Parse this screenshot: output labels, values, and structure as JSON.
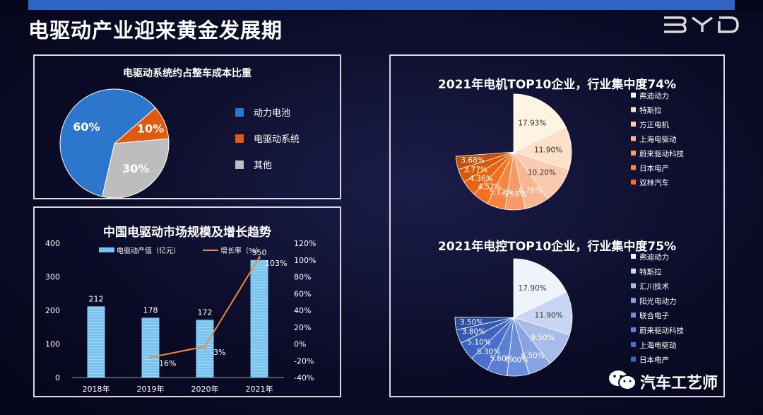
{
  "header": {
    "title": "电驱动产业迎来黄金发展期",
    "brand_logo_text": "BYD"
  },
  "watermark": {
    "text": "汽车工艺师",
    "icon": "wechat-icon"
  },
  "colors": {
    "pie_cost": [
      "#2c77cc",
      "#e05a10",
      "#bdbdbd"
    ],
    "motor": [
      "#fdf5e2",
      "#fde0c8",
      "#fbcbb0",
      "#f9b590",
      "#f79a68",
      "#f58540",
      "#f27020",
      "#e86410",
      "#d85a08",
      "#c25006"
    ],
    "control": [
      "#eef3fc",
      "#c8d6f4",
      "#a8bcea",
      "#88a4e2",
      "#6d8fdb",
      "#5a7fd4",
      "#4a6fcc",
      "#3d64c2",
      "#345ab5",
      "#2b4f9f"
    ],
    "bar": "#79c2ee",
    "line": "#ef8b3d"
  },
  "chart_data": [
    {
      "type": "pie",
      "title": "电驱动系统约占整车成本比重",
      "labels": [
        "动力电池",
        "电驱动系统",
        "其他"
      ],
      "values": [
        60,
        10,
        30
      ],
      "data_labels": [
        "60%",
        "10%",
        "30%"
      ],
      "legend": "right"
    },
    {
      "type": "bar",
      "title": "中国电驱动市场规模及增长趋势",
      "categories": [
        "2018年",
        "2019年",
        "2020年",
        "2021年"
      ],
      "series": [
        {
          "name": "电驱动产值（亿元）",
          "type": "bar",
          "axis": "left",
          "values": [
            212,
            178,
            172,
            350
          ]
        },
        {
          "name": "增长率（%）",
          "type": "line",
          "axis": "right",
          "values": [
            null,
            -16,
            -3,
            103
          ]
        }
      ],
      "bar_labels": [
        "212",
        "178",
        "172",
        "350"
      ],
      "line_labels": [
        "",
        "-16%",
        "-3%",
        "103%"
      ],
      "ylim": [
        0,
        400
      ],
      "yticks": [
        "0",
        "100",
        "200",
        "300",
        "400"
      ],
      "y2lim": [
        -40,
        120
      ],
      "y2ticks": [
        "-40%",
        "-20%",
        "0%",
        "20%",
        "40%",
        "60%",
        "80%",
        "100%",
        "120%"
      ],
      "legend": "top"
    },
    {
      "type": "pie",
      "title": "2021年电机TOP10企业，行业集中度74%",
      "values": [
        17.93,
        11.9,
        10.2,
        6.76,
        5.58,
        5.12,
        4.52,
        4.36,
        3.77,
        3.68
      ],
      "data_labels": [
        "17.93%",
        "11.90%",
        "10.20%",
        "6.76%",
        "5.58%",
        "5.12%",
        "4.52%",
        "4.36%",
        "3.77%",
        "3.68%"
      ],
      "legend_labels": [
        "弗迪动力",
        "特斯拉",
        "方正电机",
        "上海电驱动",
        "蔚来驱动科技",
        "日本电产",
        "双林汽车"
      ],
      "legend": "right"
    },
    {
      "type": "pie",
      "title": "2021年电控TOP10企业，行业集中度75%",
      "values": [
        17.9,
        11.9,
        9.5,
        6.5,
        6.0,
        5.6,
        5.3,
        5.1,
        3.8,
        3.5
      ],
      "data_labels": [
        "17.90%",
        "11.90%",
        "9.50%",
        "6.50%",
        "6.00%",
        "5.60%",
        "5.30%",
        "5.10%",
        "3.80%",
        "3.50%"
      ],
      "legend_labels": [
        "弗迪动力",
        "特斯拉",
        "汇川技术",
        "阳光电动力",
        "联合电子",
        "蔚来驱动科技",
        "上海电驱动",
        "日本电产"
      ],
      "legend": "right"
    }
  ]
}
